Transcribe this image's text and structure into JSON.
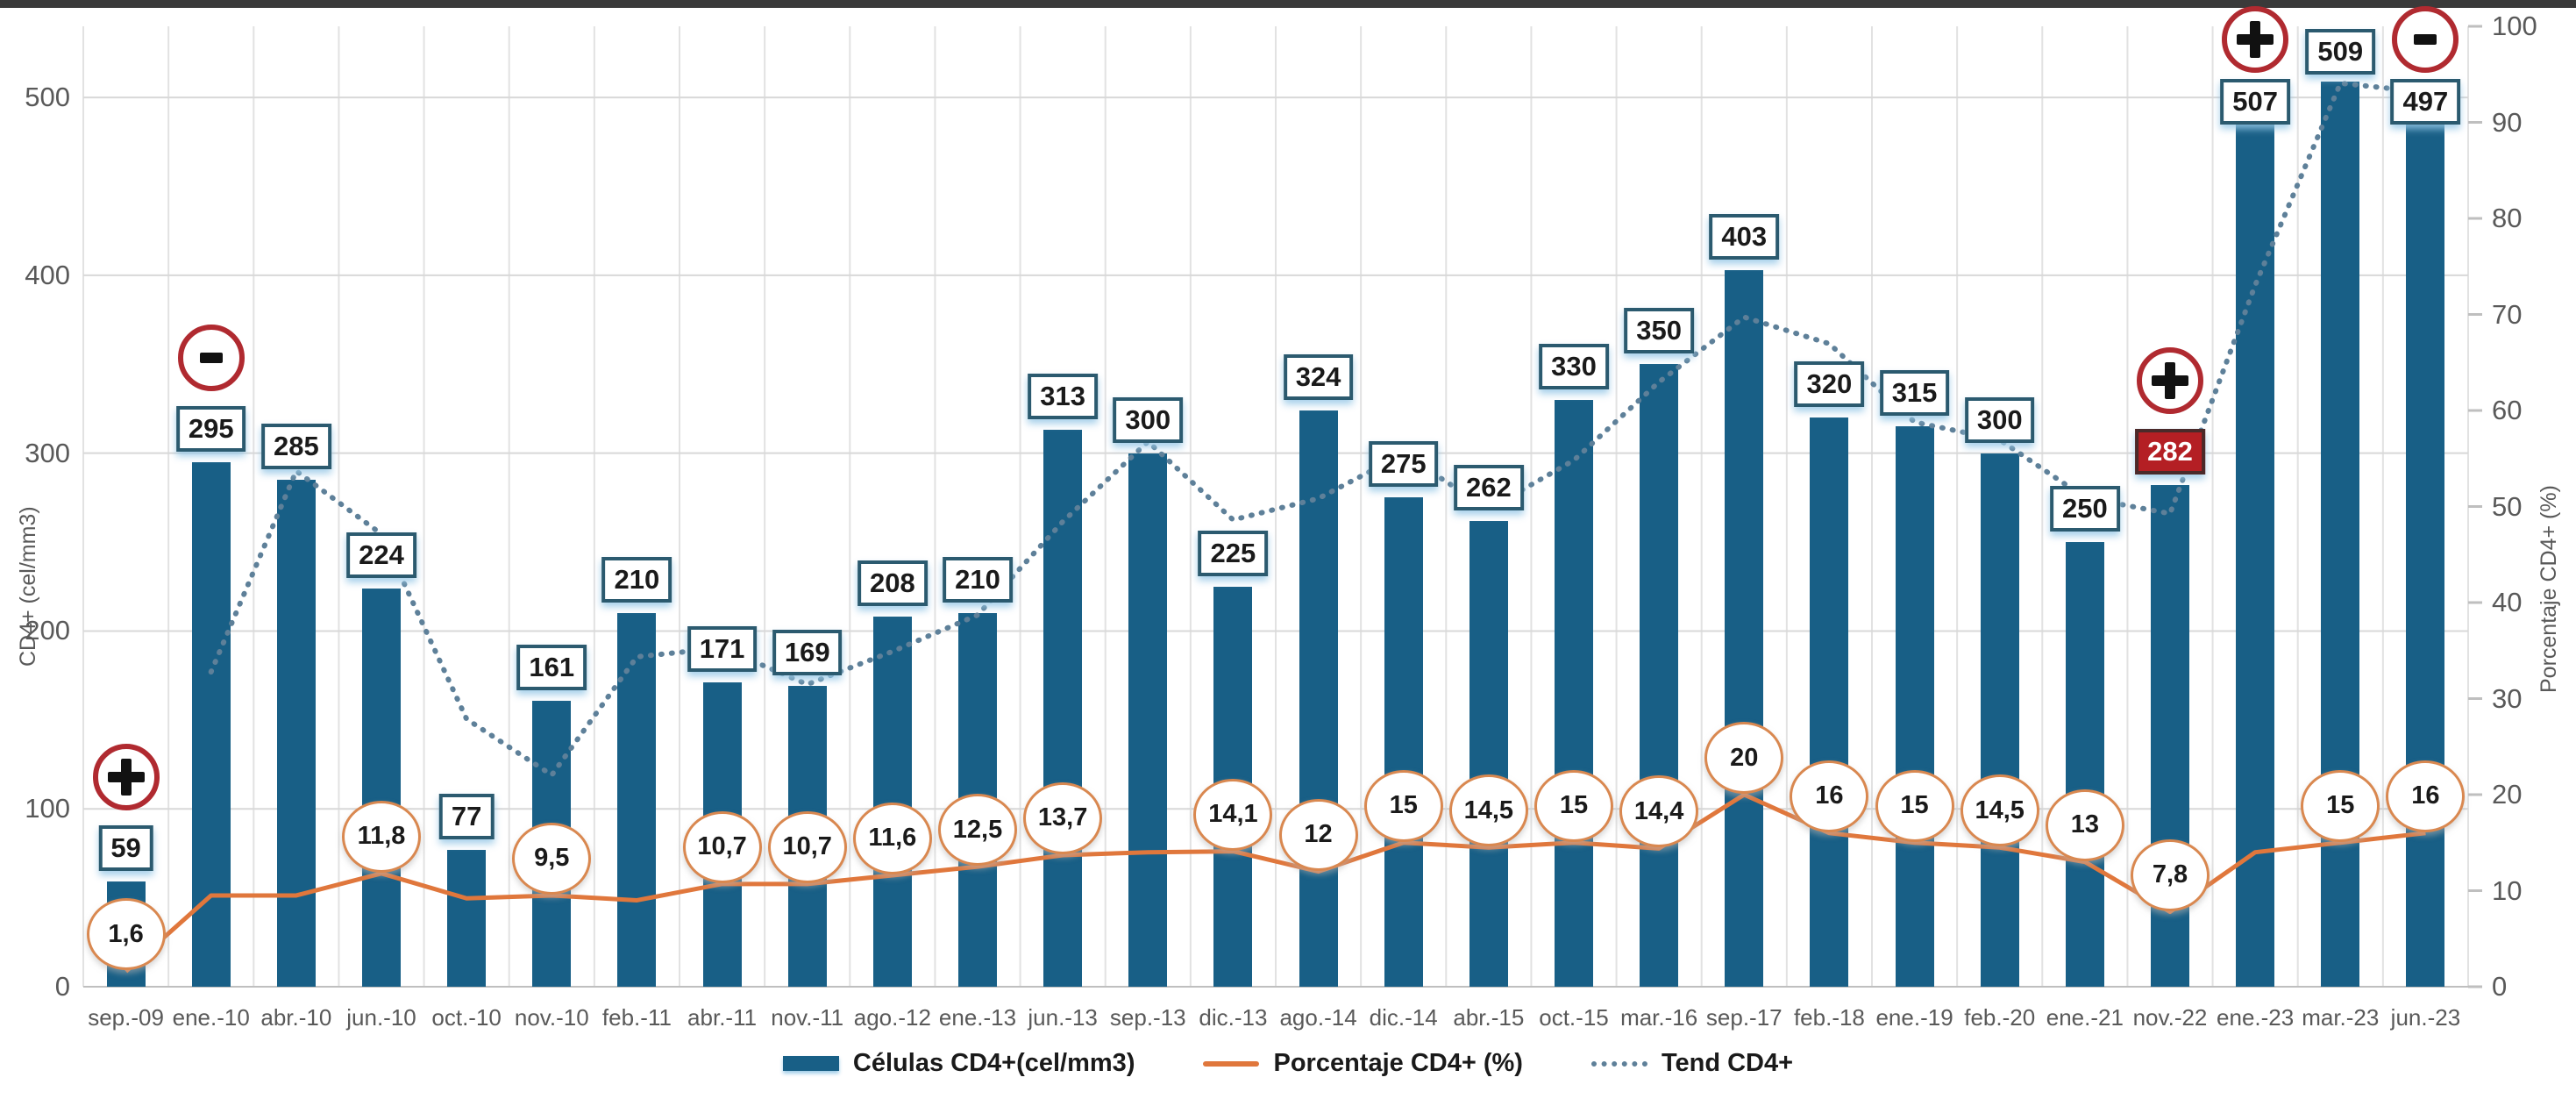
{
  "window": {
    "top_border": true
  },
  "axes": {
    "left": {
      "title": "CD4+ (cel/mm3)",
      "ticks": [
        0,
        100,
        200,
        300,
        400,
        500
      ],
      "max": 540
    },
    "right": {
      "title": "Porcentaje CD4+ (%)",
      "ticks": [
        0,
        10,
        20,
        30,
        40,
        50,
        60,
        70,
        80,
        90,
        100
      ],
      "max": 100
    }
  },
  "legend": {
    "bars": "Células CD4+(cel/mm3)",
    "line": "Porcentaje CD4+ (%)",
    "trend": "Tend CD4+"
  },
  "colors": {
    "bar": "#185f86",
    "bar_label_border": "#2b5a6f",
    "pct_line": "#e0773c",
    "pct_circle_border": "#d98850",
    "trend_line": "#5e8099",
    "annotation_circle": "#b02a30",
    "highlight_label_bg": "#b41f24",
    "grid": "#e2e2e2",
    "axis_line": "#bfbfbf",
    "tick_text": "#595959"
  },
  "chart_data": {
    "type": "bar",
    "subtype": "combo-bar-line-dual-axis",
    "categories": [
      "sep.-09",
      "ene.-10",
      "abr.-10",
      "jun.-10",
      "oct.-10",
      "nov.-10",
      "feb.-11",
      "abr.-11",
      "nov.-11",
      "ago.-12",
      "ene.-13",
      "jun.-13",
      "sep.-13",
      "dic.-13",
      "ago.-14",
      "dic.-14",
      "abr.-15",
      "oct.-15",
      "mar.-16",
      "sep.-17",
      "feb.-18",
      "ene.-19",
      "feb.-20",
      "ene.-21",
      "nov.-22",
      "ene.-23",
      "mar.-23",
      "jun.-23"
    ],
    "series": [
      {
        "name": "Células CD4+(cel/mm3)",
        "type": "bar",
        "axis": "left",
        "values": [
          59,
          295,
          285,
          224,
          77,
          161,
          210,
          171,
          169,
          208,
          210,
          313,
          300,
          225,
          324,
          275,
          262,
          330,
          350,
          403,
          320,
          315,
          300,
          250,
          282,
          507,
          509,
          497
        ]
      },
      {
        "name": "Porcentaje CD4+ (%)",
        "type": "line",
        "axis": "right",
        "values": [
          1.6,
          9.5,
          9.5,
          11.8,
          9.2,
          9.5,
          9,
          10.7,
          10.7,
          11.6,
          12.5,
          13.7,
          14,
          14.1,
          12,
          15,
          14.5,
          15,
          14.4,
          20,
          16,
          15,
          14.5,
          13,
          7.8,
          14,
          15,
          16
        ],
        "point_labels": [
          "1,6",
          null,
          null,
          "11,8",
          null,
          "9,5",
          null,
          "10,7",
          "10,7",
          "11,6",
          "12,5",
          "13,7",
          null,
          "14,1",
          "12",
          "15",
          "14,5",
          "15",
          "14,4",
          "20",
          "16",
          "15",
          "14,5",
          "13",
          "7,8",
          null,
          "15",
          "16"
        ]
      },
      {
        "name": "Tend CD4+",
        "type": "trend-moving-average",
        "axis": "left",
        "period": 2
      }
    ],
    "annotations": [
      {
        "index": 0,
        "symbol": "+"
      },
      {
        "index": 1,
        "symbol": "-"
      },
      {
        "index": 24,
        "symbol": "+"
      },
      {
        "index": 25,
        "symbol": "+"
      },
      {
        "index": 27,
        "symbol": "-"
      }
    ],
    "highlighted_bar_index": 24,
    "xlabel": "",
    "ylabel_left": "CD4+ (cel/mm3)",
    "ylabel_right": "Porcentaje CD4+ (%)",
    "ylim_left": [
      0,
      540
    ],
    "ylim_right": [
      0,
      100
    ],
    "grid": true,
    "legend_position": "bottom"
  }
}
